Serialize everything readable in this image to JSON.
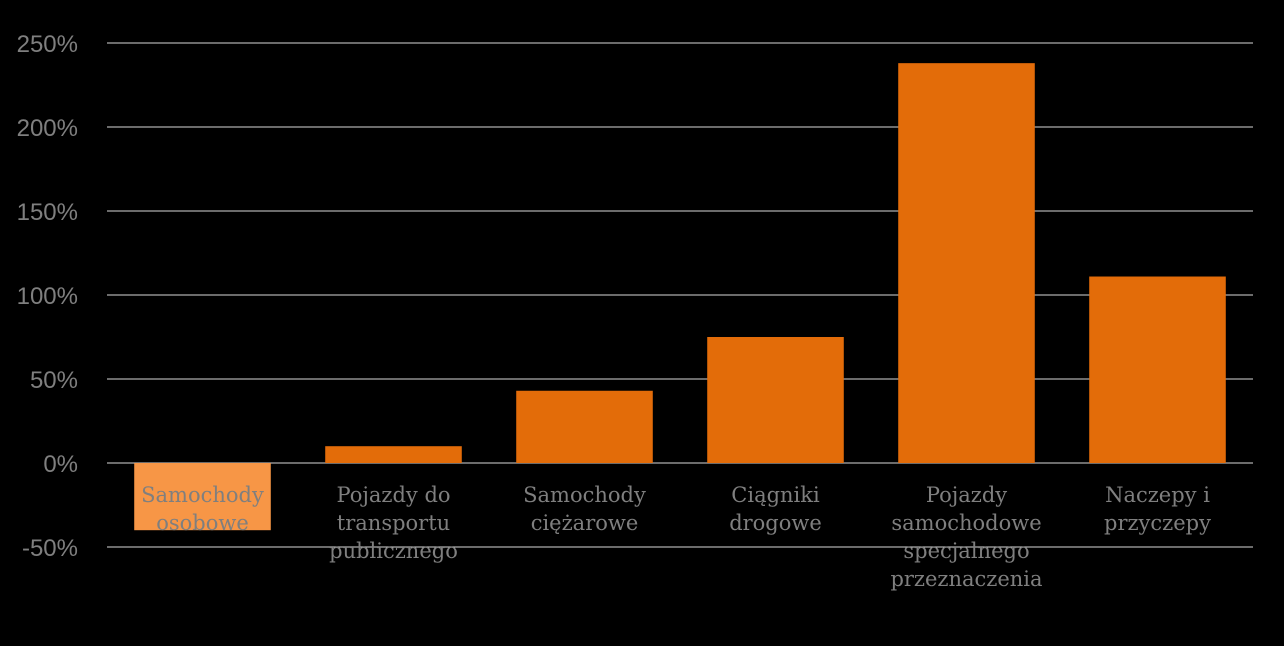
{
  "chart_data": {
    "type": "bar",
    "title": "",
    "xlabel": "",
    "ylabel": "",
    "ylim": [
      -50,
      250
    ],
    "yticks": [
      "-50%",
      "0%",
      "50%",
      "100%",
      "150%",
      "200%",
      "250%"
    ],
    "ytick_values": [
      -50,
      0,
      50,
      100,
      150,
      200,
      250
    ],
    "grid": true,
    "categories": [
      [
        "Samochody",
        "osobowe"
      ],
      [
        "Pojazdy do",
        "transportu",
        "publicznego"
      ],
      [
        "Samochody",
        "ciężarowe"
      ],
      [
        "Ciągniki",
        "drogowe"
      ],
      [
        "Pojazdy",
        "samochodowe",
        "specjalnego",
        "przeznaczenia"
      ],
      [
        "Naczepy i",
        "przyczepy"
      ]
    ],
    "values": [
      -40,
      10,
      43,
      75,
      238,
      111
    ],
    "colors": {
      "negative_bar": "#f79646",
      "positive_bar": "#e36c09",
      "grid": "#d9d9d9",
      "text": "#7f7f7f",
      "background": "#000000"
    }
  }
}
